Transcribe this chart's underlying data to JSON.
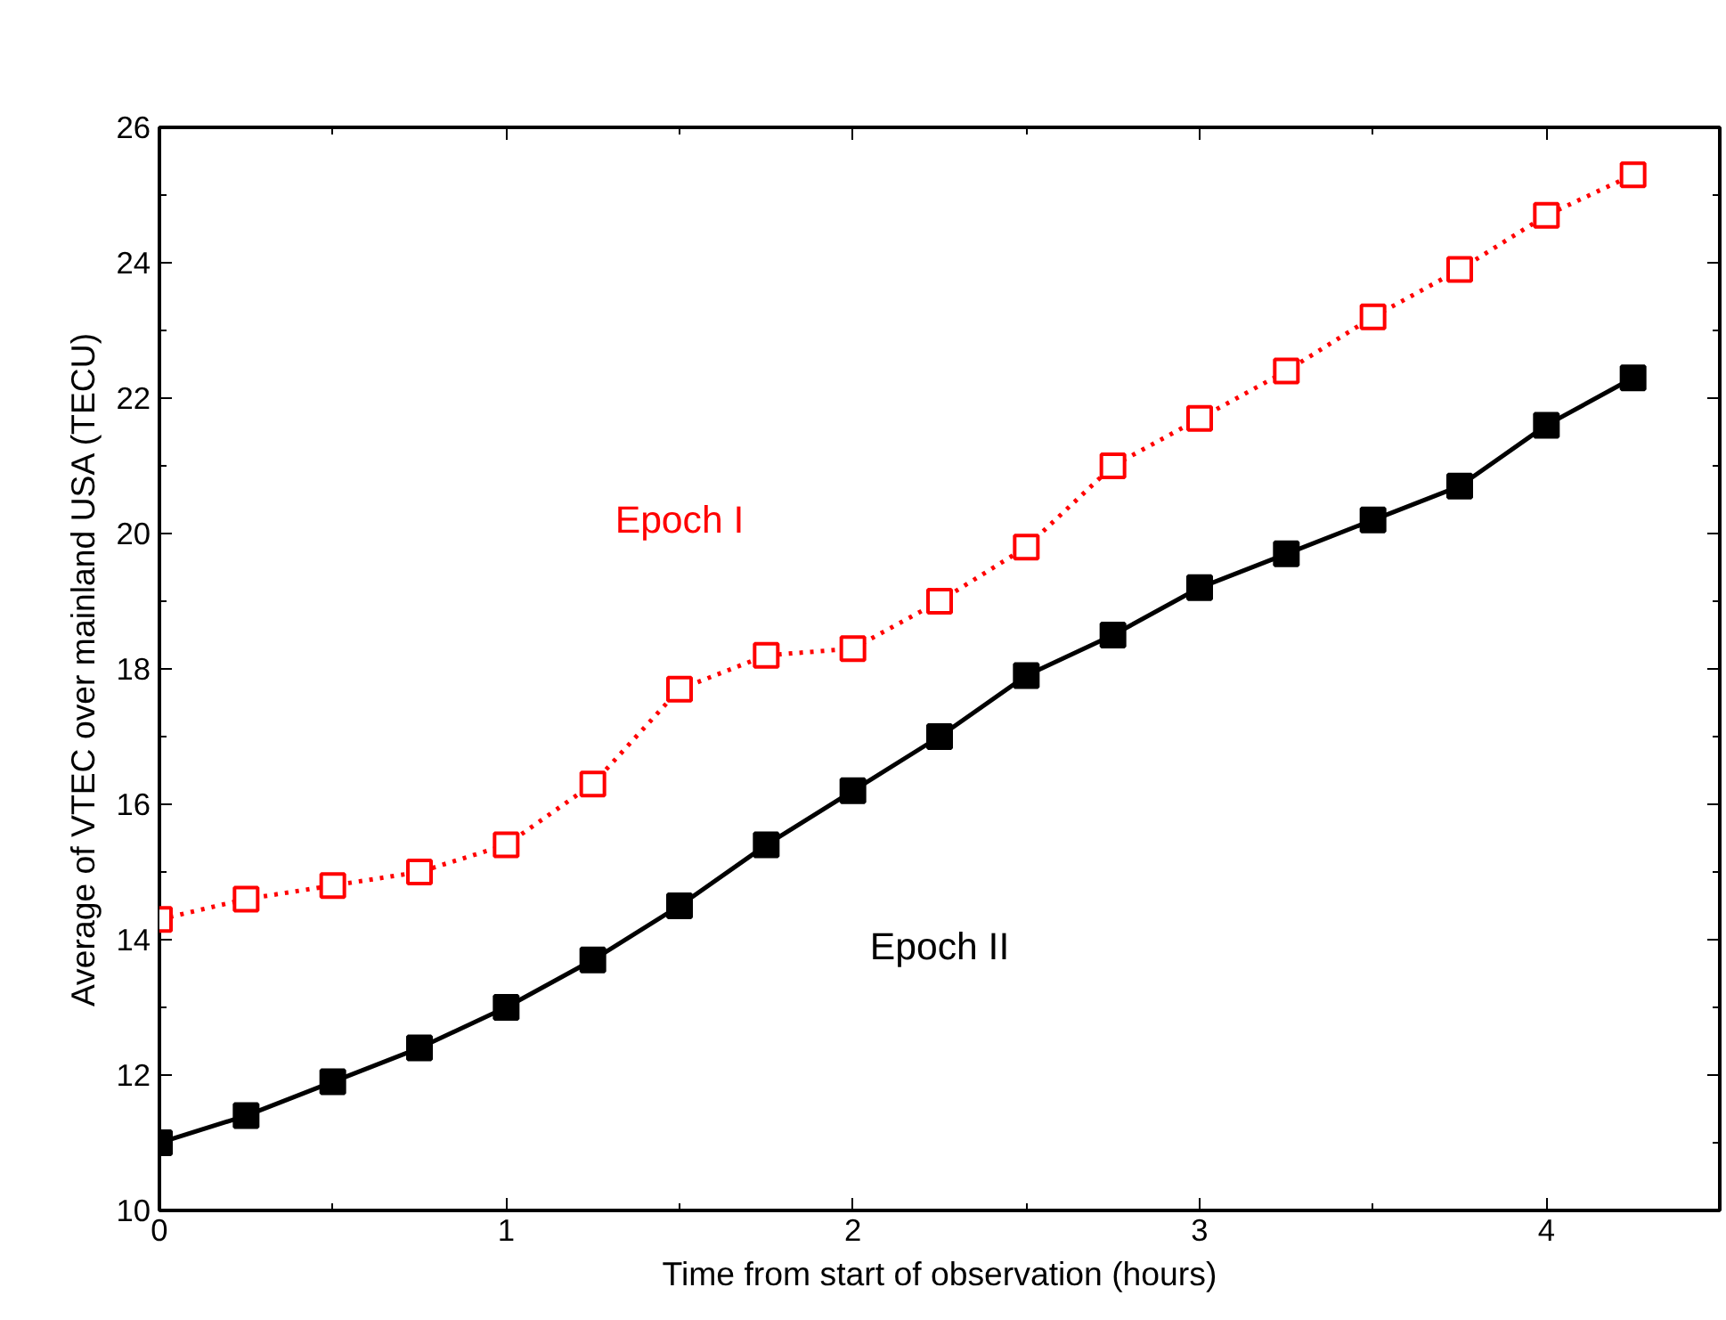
{
  "chart_data": {
    "type": "line",
    "xlabel": "Time from start of observation (hours)",
    "ylabel": "Average of VTEC over mainland USA (TECU)",
    "x": [
      0,
      0.25,
      0.5,
      0.75,
      1,
      1.25,
      1.5,
      1.75,
      2,
      2.25,
      2.5,
      2.75,
      3,
      3.25,
      3.5,
      3.75,
      4,
      4.25
    ],
    "series": [
      {
        "name": "Epoch I",
        "color": "#ff0000",
        "marker": "square",
        "line_style": "dotted",
        "values": [
          14.3,
          14.6,
          14.8,
          15.0,
          15.4,
          16.3,
          17.7,
          18.2,
          18.3,
          19.0,
          19.8,
          21.0,
          21.7,
          22.4,
          23.2,
          23.9,
          24.7,
          25.3
        ]
      },
      {
        "name": "Epoch II",
        "color": "#000000",
        "marker": "square",
        "line_style": "solid",
        "values": [
          11.0,
          11.4,
          11.9,
          12.4,
          13.0,
          13.7,
          14.5,
          15.4,
          16.2,
          17.0,
          17.9,
          18.5,
          19.2,
          19.7,
          20.2,
          20.7,
          21.6,
          22.3
        ]
      }
    ],
    "xlim": [
      0,
      4.5
    ],
    "xticks": [
      0,
      1,
      2,
      3,
      4
    ],
    "ylim": [
      10,
      26
    ],
    "yticks": [
      10,
      12,
      14,
      16,
      18,
      20,
      22,
      24,
      26
    ],
    "grid": false
  }
}
